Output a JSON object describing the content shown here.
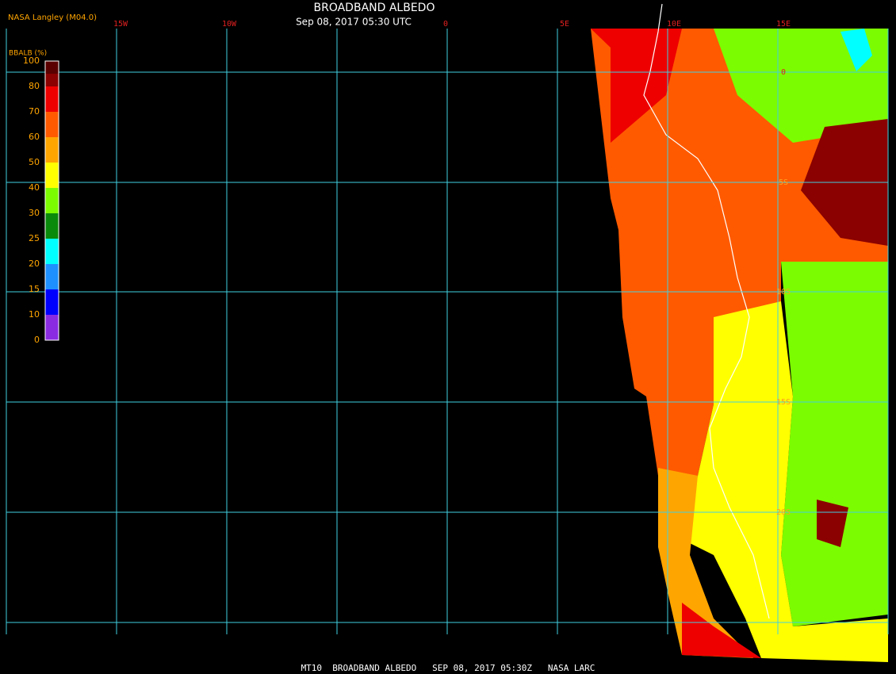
{
  "header": {
    "source": "NASA Langley (M04.0)",
    "title": "BROADBAND ALBEDO",
    "subtitle": "Sep 08, 2017 05:30 UTC"
  },
  "legend": {
    "title": "BBALB (%)",
    "labels": [
      "100",
      "80",
      "70",
      "60",
      "50",
      "40",
      "30",
      "25",
      "20",
      "15",
      "10",
      "0"
    ],
    "colors": [
      "#5a0000",
      "#8b0000",
      "#ee0000",
      "#ff5a00",
      "#ffa500",
      "#ffff00",
      "#7cfc00",
      "#0a8a0a",
      "#00ffff",
      "#1e90ff",
      "#0000ff",
      "#8a2be2"
    ]
  },
  "grid": {
    "lon_labels": [
      "15W",
      "10W",
      "0",
      "5E",
      "10E",
      "15E"
    ],
    "lat_labels": [
      "0",
      "5S",
      "10S",
      "15S",
      "20S"
    ]
  },
  "footer": "MT10  BROADBAND ALBEDO   SEP 08, 2017 05:30Z   NASA LARC"
}
